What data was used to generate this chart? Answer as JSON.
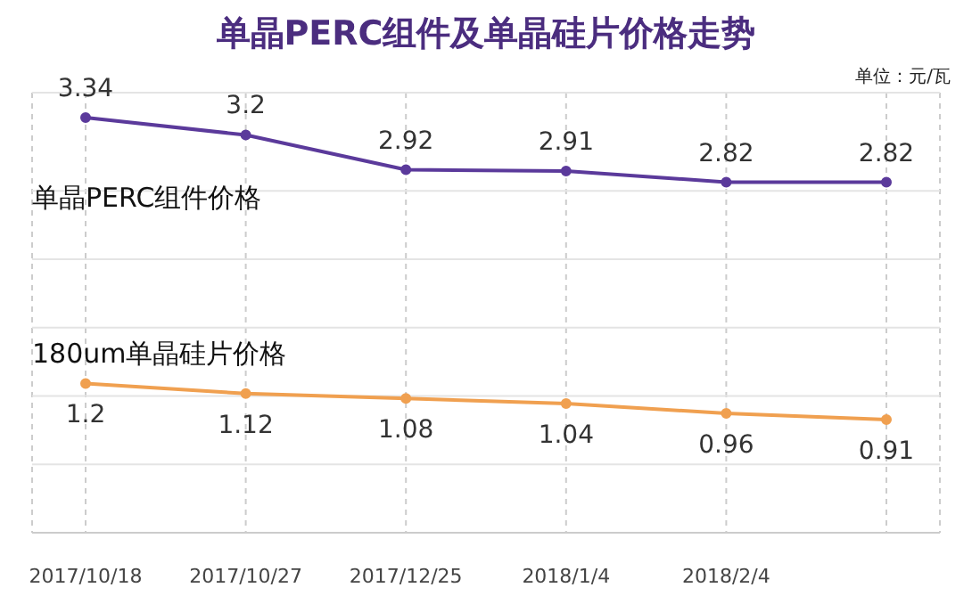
{
  "chart_data": {
    "type": "line",
    "title": "单晶PERC组件及单晶硅片价格走势",
    "annotations": [
      "单位：元/瓦"
    ],
    "categories": [
      "2017/10/18",
      "2017/10/27",
      "2017/12/25",
      "2018/1/4",
      "2018/2/4",
      null
    ],
    "series": [
      {
        "name": "单晶PERC组件价格",
        "color": "#5b3a9b",
        "values": [
          3.34,
          3.2,
          2.92,
          2.91,
          2.82,
          2.82
        ]
      },
      {
        "name": "180um单晶硅片价格",
        "color": "#f0a050",
        "values": [
          1.2,
          1.12,
          1.08,
          1.04,
          0.96,
          0.91
        ]
      }
    ],
    "data_labels": true,
    "grid": true,
    "marker": "circle"
  }
}
